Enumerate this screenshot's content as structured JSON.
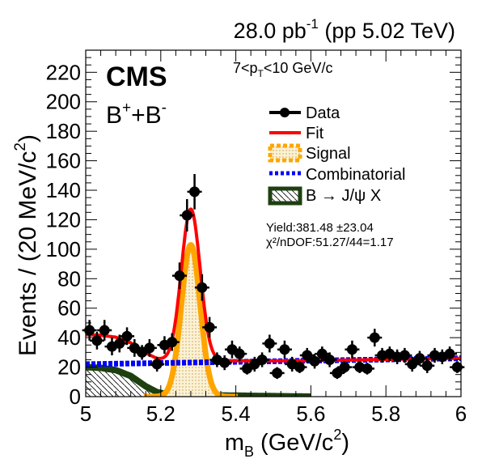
{
  "header": {
    "lumi_value": "28.0 pb",
    "lumi_exp": "-1",
    "lumi_tail": " (pp 5.02 TeV)"
  },
  "labels": {
    "experiment": "CMS",
    "channel_b": "B",
    "channel_sup1": "+",
    "channel_plus": "+B",
    "channel_sup2": "-",
    "pt_a": "7<p",
    "pt_sub": "T",
    "pt_b": "<10 GeV/c",
    "yield": "Yield:381.48 ±23.04",
    "chi2": "χ²/nDOF:51.27/44=1.17"
  },
  "legend": [
    {
      "key": "data",
      "label": "Data"
    },
    {
      "key": "fit",
      "label": "Fit"
    },
    {
      "key": "signal",
      "label": "Signal"
    },
    {
      "key": "comb",
      "label": "Combinatorial"
    },
    {
      "key": "jpsix",
      "label": "B → J/ψ X"
    }
  ],
  "colors": {
    "fit": "#ff0000",
    "signal": "#ffa500",
    "signal_fill": "#f5e6b8",
    "combinatorial": "#0000ff",
    "jpsix": "#1e4010",
    "data": "#000000"
  },
  "chart_data": {
    "type": "scatter",
    "xlabel": "m",
    "xlabel_sub": "B",
    "xlabel_unit": " (GeV/c",
    "xlabel_unit_sup": "2",
    "xlabel_close": ")",
    "ylabel": "Events / (20 MeV/c",
    "ylabel_sup": "2",
    "ylabel_close": ")",
    "xlim": [
      5.0,
      6.0
    ],
    "ylim": [
      0,
      235
    ],
    "xticks": [
      {
        "v": 5.0,
        "label": "5"
      },
      {
        "v": 5.2,
        "label": "5.2"
      },
      {
        "v": 5.4,
        "label": "5.4"
      },
      {
        "v": 5.6,
        "label": "5.6"
      },
      {
        "v": 5.8,
        "label": "5.8"
      },
      {
        "v": 6.0,
        "label": "6"
      }
    ],
    "yticks": [
      0,
      20,
      40,
      60,
      80,
      100,
      120,
      140,
      160,
      180,
      200,
      220
    ],
    "data": {
      "x": [
        5.01,
        5.03,
        5.05,
        5.07,
        5.09,
        5.11,
        5.13,
        5.15,
        5.17,
        5.19,
        5.21,
        5.23,
        5.25,
        5.27,
        5.29,
        5.31,
        5.33,
        5.35,
        5.37,
        5.39,
        5.41,
        5.43,
        5.45,
        5.47,
        5.49,
        5.51,
        5.53,
        5.55,
        5.57,
        5.59,
        5.61,
        5.63,
        5.65,
        5.67,
        5.69,
        5.71,
        5.73,
        5.75,
        5.77,
        5.79,
        5.81,
        5.83,
        5.85,
        5.87,
        5.89,
        5.91,
        5.93,
        5.95,
        5.97,
        5.99
      ],
      "y": [
        45,
        38,
        45,
        34,
        36,
        41,
        33,
        30,
        33,
        22,
        35,
        37,
        82,
        123,
        139,
        74,
        47,
        25,
        23,
        32,
        29,
        19,
        22,
        25,
        36,
        16,
        32,
        22,
        20,
        28,
        24,
        29,
        25,
        16,
        20,
        32,
        20,
        19,
        40,
        28,
        29,
        27,
        28,
        22,
        26,
        21,
        28,
        27,
        29,
        20
      ],
      "err": [
        7,
        6,
        7,
        6,
        6,
        6,
        6,
        5,
        6,
        5,
        6,
        6,
        9,
        11,
        12,
        9,
        7,
        5,
        5,
        6,
        5,
        4,
        5,
        5,
        6,
        4,
        6,
        5,
        4,
        5,
        5,
        5,
        5,
        4,
        4,
        6,
        4,
        4,
        6,
        5,
        5,
        5,
        5,
        5,
        5,
        5,
        5,
        5,
        5,
        4
      ]
    },
    "combinatorial": {
      "x": [
        5.0,
        6.0
      ],
      "y": [
        22,
        26
      ]
    },
    "signal": {
      "mean": 5.28,
      "sigma": 0.025,
      "amplitude": 103
    },
    "jpsix": {
      "x": [
        5.0,
        5.04,
        5.08,
        5.12,
        5.16,
        5.19,
        5.22,
        5.26,
        5.3,
        5.36,
        5.42,
        5.48,
        5.54,
        5.6
      ],
      "y": [
        20,
        19.5,
        18,
        14,
        7,
        3,
        1.5,
        1.2,
        1,
        0.8,
        0.6,
        0.4,
        0.2,
        0
      ]
    }
  }
}
